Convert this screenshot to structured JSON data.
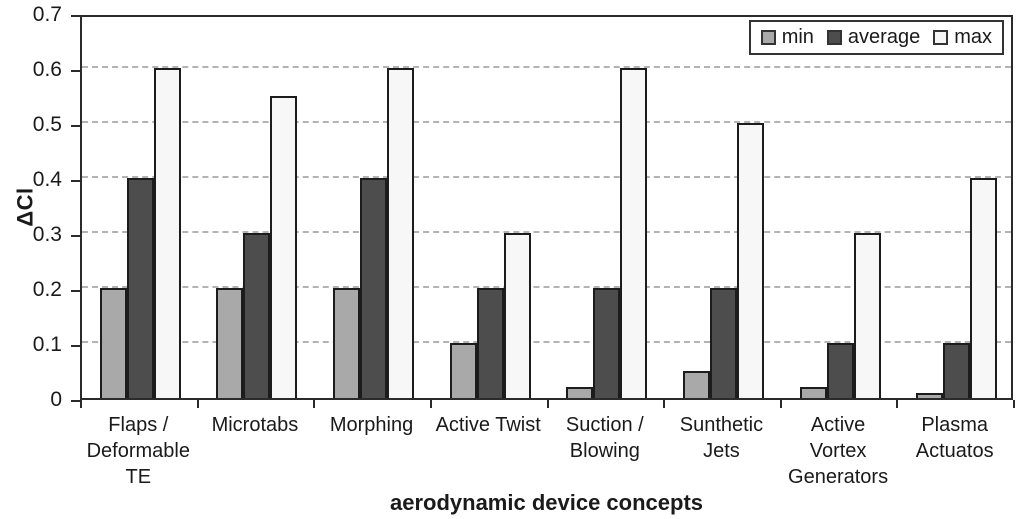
{
  "chart_data": {
    "type": "bar",
    "title": "",
    "xlabel": "aerodynamic device concepts",
    "ylabel": "ΔCl",
    "ylim": [
      0,
      0.7
    ],
    "ytick_step": 0.1,
    "yticks": [
      "0.7",
      "0.6",
      "0.5",
      "0.4",
      "0.3",
      "0.2",
      "0.1",
      "0"
    ],
    "categories": [
      "Flaps /\nDeformable\nTE",
      "Microtabs",
      "Morphing",
      "Active Twist",
      "Suction /\nBlowing",
      "Sunthetic\nJets",
      "Active\nVortex\nGenerators",
      "Plasma\nActuatos"
    ],
    "series": [
      {
        "name": "min",
        "color": "#a9a9a9",
        "values": [
          0.2,
          0.2,
          0.2,
          0.1,
          0.02,
          0.05,
          0.02,
          0.01
        ]
      },
      {
        "name": "average",
        "color": "#4d4d4d",
        "values": [
          0.4,
          0.3,
          0.4,
          0.2,
          0.2,
          0.2,
          0.1,
          0.1
        ]
      },
      {
        "name": "max",
        "color": "#f7f7f7",
        "values": [
          0.6,
          0.55,
          0.6,
          0.3,
          0.6,
          0.5,
          0.3,
          0.4
        ]
      }
    ],
    "legend_position": "top-right",
    "grid": "dashed-horizontal",
    "colors": {
      "bar_border": "#1c1c1c",
      "plot_border": "#2b2b2b",
      "gridline": "#b3b3b3",
      "text": "#1a1a1a",
      "background": "#ffffff"
    }
  }
}
